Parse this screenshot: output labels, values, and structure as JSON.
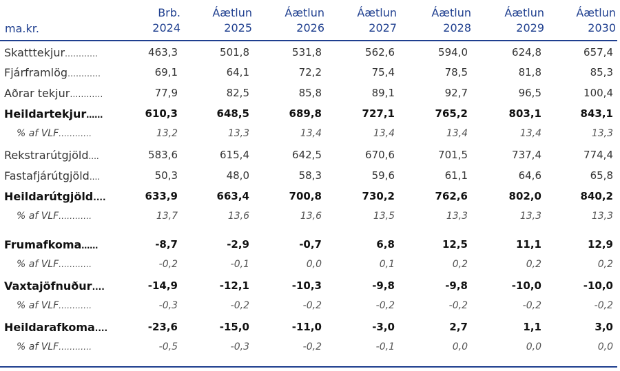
{
  "table": {
    "unit_label": "ma.kr.",
    "columns": [
      {
        "line1": "Brb.",
        "line2": "2024"
      },
      {
        "line1": "Áætlun",
        "line2": "2025"
      },
      {
        "line1": "Áætlun",
        "line2": "2026"
      },
      {
        "line1": "Áætlun",
        "line2": "2027"
      },
      {
        "line1": "Áætlun",
        "line2": "2028"
      },
      {
        "line1": "Áætlun",
        "line2": "2029"
      },
      {
        "line1": "Áætlun",
        "line2": "2030"
      }
    ],
    "rows": [
      {
        "label": "Skatttekjur",
        "dots": "…………",
        "style": "normal",
        "values": [
          "463,3",
          "501,8",
          "531,8",
          "562,6",
          "594,0",
          "624,8",
          "657,4"
        ]
      },
      {
        "label": "Fjárframlög",
        "dots": "…………",
        "style": "normal",
        "values": [
          "69,1",
          "64,1",
          "72,2",
          "75,4",
          "78,5",
          "81,8",
          "85,3"
        ]
      },
      {
        "label": "Aðrar tekjur",
        "dots": "…………",
        "style": "normal",
        "values": [
          "77,9",
          "82,5",
          "85,8",
          "89,1",
          "92,7",
          "96,5",
          "100,4"
        ]
      },
      {
        "label": "Heildartekjur",
        "dots": "……",
        "style": "bold",
        "values": [
          "610,3",
          "648,5",
          "689,8",
          "727,1",
          "765,2",
          "803,1",
          "843,1"
        ]
      },
      {
        "label": "% af VLF",
        "dots": "…………",
        "style": "pct",
        "values": [
          "13,2",
          "13,3",
          "13,4",
          "13,4",
          "13,4",
          "13,4",
          "13,3"
        ]
      },
      {
        "label": "Rekstrarútgjöld",
        "dots": "....",
        "style": "normal",
        "values": [
          "583,6",
          "615,4",
          "642,5",
          "670,6",
          "701,5",
          "737,4",
          "774,4"
        ]
      },
      {
        "label": "Fastafjárútgjöld",
        "dots": "....",
        "style": "normal",
        "values": [
          "50,3",
          "48,0",
          "58,3",
          "59,6",
          "61,1",
          "64,6",
          "65,8"
        ]
      },
      {
        "label": "Heildarútgjöld",
        "dots": "....",
        "style": "bold",
        "values": [
          "633,9",
          "663,4",
          "700,8",
          "730,2",
          "762,6",
          "802,0",
          "840,2"
        ]
      },
      {
        "label": "% af VLF",
        "dots": "…………",
        "style": "pct",
        "values": [
          "13,7",
          "13,6",
          "13,6",
          "13,5",
          "13,3",
          "13,3",
          "13,3"
        ]
      },
      {
        "label": "Frumafkoma",
        "dots": "……",
        "style": "bold",
        "values": [
          "-8,7",
          "-2,9",
          "-0,7",
          "6,8",
          "12,5",
          "11,1",
          "12,9"
        ]
      },
      {
        "label": "% af VLF",
        "dots": "…………",
        "style": "pct",
        "values": [
          "-0,2",
          "-0,1",
          "0,0",
          "0,1",
          "0,2",
          "0,2",
          "0,2"
        ]
      },
      {
        "label": "Vaxtajöfnuður",
        "dots": "....",
        "style": "bold",
        "values": [
          "-14,9",
          "-12,1",
          "-10,3",
          "-9,8",
          "-9,8",
          "-10,0",
          "-10,0"
        ]
      },
      {
        "label": "% af VLF",
        "dots": "…………",
        "style": "pct",
        "values": [
          "-0,3",
          "-0,2",
          "-0,2",
          "-0,2",
          "-0,2",
          "-0,2",
          "-0,2"
        ]
      },
      {
        "label": "Heildarafkoma",
        "dots": "....",
        "style": "bold",
        "values": [
          "-23,6",
          "-15,0",
          "-11,0",
          "-3,0",
          "2,7",
          "1,1",
          "3,0"
        ]
      },
      {
        "label": "% af VLF",
        "dots": "…………",
        "style": "pct",
        "values": [
          "-0,5",
          "-0,3",
          "-0,2",
          "-0,1",
          "0,0",
          "0,0",
          "0,0"
        ]
      }
    ]
  }
}
